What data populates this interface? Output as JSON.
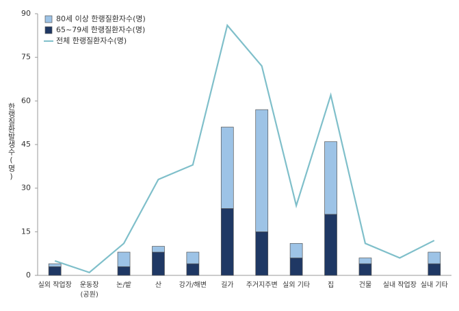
{
  "chart_data": {
    "type": "stacked-bar-line",
    "y_label": "한랭질환발생수(명)",
    "categories": [
      "실외 작업장",
      "운동장(공원)",
      "논/밭",
      "산",
      "강가/해변",
      "길가",
      "주거지주변",
      "실외 기타",
      "집",
      "건물",
      "실내 작업장",
      "실내 기타"
    ],
    "series": [
      {
        "name": "80세 이상 한랭질환자수(명)",
        "kind": "bar",
        "color": "#9dc3e6",
        "values": [
          1,
          0,
          5,
          2,
          4,
          28,
          42,
          5,
          25,
          2,
          0,
          4
        ]
      },
      {
        "name": "65~79세 한랭질환자수(명)",
        "kind": "bar",
        "color": "#1f3864",
        "values": [
          3,
          0,
          3,
          8,
          4,
          23,
          15,
          6,
          21,
          4,
          0,
          4
        ]
      },
      {
        "name": "전체 한랭질환자수(명)",
        "kind": "line",
        "color": "#7fbfca",
        "values": [
          5,
          1,
          11,
          33,
          38,
          86,
          72,
          24,
          62,
          11,
          6,
          12
        ]
      }
    ],
    "ylim": [
      0,
      90
    ],
    "yticks": [
      0,
      15,
      30,
      45,
      60,
      75,
      90
    ]
  }
}
